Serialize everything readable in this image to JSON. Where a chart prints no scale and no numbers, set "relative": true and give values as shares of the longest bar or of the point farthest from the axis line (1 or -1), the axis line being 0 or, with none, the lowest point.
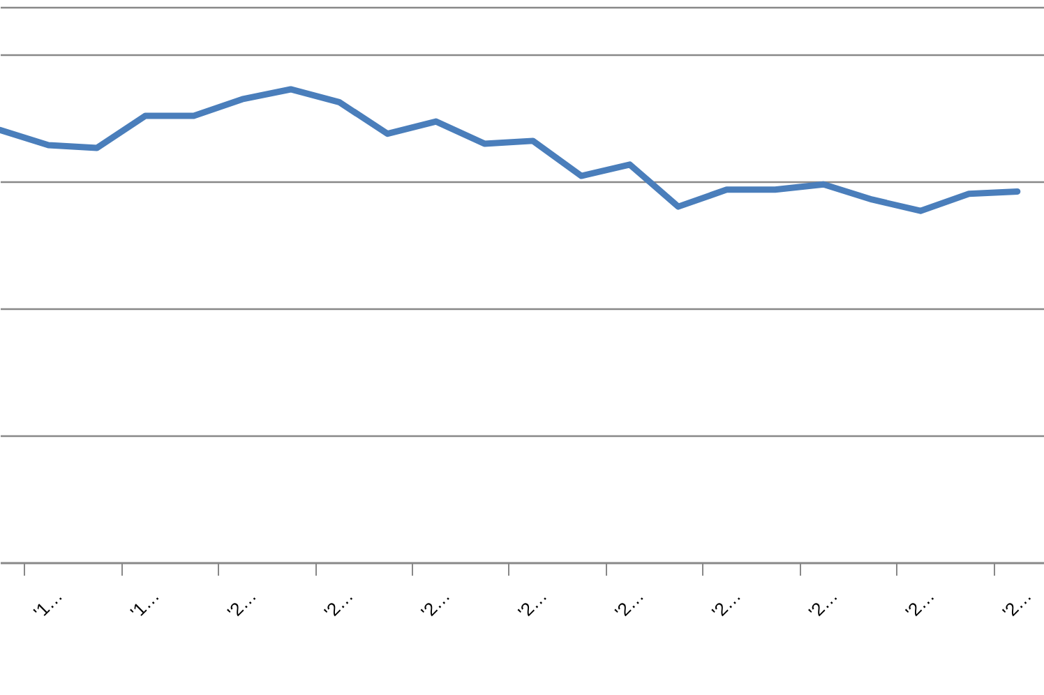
{
  "chart_data": {
    "type": "line",
    "relative": true,
    "grid": "y",
    "categories": [
      null,
      "'1…",
      null,
      "'1…",
      null,
      "'2…",
      null,
      "'2…",
      null,
      "'2…",
      null,
      "'2…",
      null,
      "'2…",
      null,
      "'2…",
      null,
      "'2…",
      null,
      "'2…",
      null,
      "'2…"
    ],
    "series": [
      {
        "color": "#4a7ebb",
        "values": [
          0.914,
          0.882,
          0.876,
          0.944,
          0.944,
          0.979,
          1,
          0.973,
          0.906,
          0.932,
          0.885,
          0.891,
          0.817,
          0.841,
          0.752,
          0.788,
          0.788,
          0.799,
          0.767,
          0.743,
          0.779,
          0.784
        ]
      }
    ]
  }
}
